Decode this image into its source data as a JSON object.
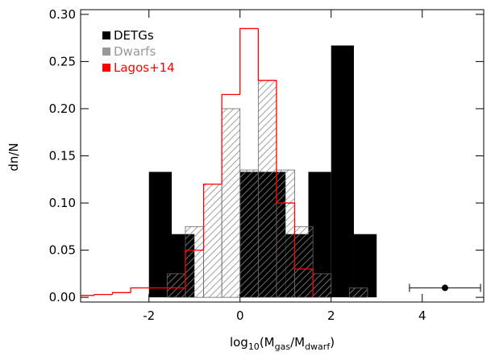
{
  "chart_data": {
    "type": "histogram",
    "xlabel_parts": [
      "log",
      "10",
      "(M",
      "gas",
      "/M",
      "dwarf",
      ")"
    ],
    "ylabel": "dn/N",
    "xlim": [
      -3.5,
      5.35
    ],
    "ylim": [
      -0.005,
      0.305
    ],
    "xticks": [
      -2,
      0,
      2,
      4
    ],
    "yticks": [
      {
        "value": 0,
        "label": "0.00"
      },
      {
        "value": 0.05,
        "label": "0.05"
      },
      {
        "value": 0.1,
        "label": "0.10"
      },
      {
        "value": 0.15,
        "label": "0.15"
      },
      {
        "value": 0.2,
        "label": "0.20"
      },
      {
        "value": 0.25,
        "label": "0.25"
      },
      {
        "value": 0.3,
        "label": "0.30"
      }
    ],
    "legend": "top-left",
    "series": [
      {
        "name": "DETGs",
        "color": "#000000",
        "style": "filled",
        "bins": [
          -2,
          -1.5,
          -1,
          -0.5,
          0,
          0.5,
          1,
          1.5,
          2,
          2.5,
          3
        ],
        "counts": [
          0.133,
          0.067,
          0,
          0,
          0.133,
          0.133,
          0.067,
          0.133,
          0.267,
          0.067
        ]
      },
      {
        "name": "Dwarfs",
        "color": "#999999",
        "style": "hatched",
        "bins": [
          -1.6,
          -1.2,
          -0.8,
          -0.4,
          0,
          0.4,
          0.8,
          1.2,
          1.6,
          2.0,
          2.4,
          2.8
        ],
        "counts": [
          0.025,
          0.075,
          0.12,
          0.2,
          0.135,
          0.23,
          0.135,
          0.075,
          0.025,
          0,
          0.01
        ]
      },
      {
        "name": "Lagos+14",
        "color": "#ff0000",
        "style": "step",
        "bins": [
          -3.6,
          -3.2,
          -2.8,
          -2.4,
          -2.0,
          -1.6,
          -1.2,
          -0.8,
          -0.4,
          0,
          0.4,
          0.8,
          1.2,
          1.6
        ],
        "counts": [
          0.002,
          0.003,
          0.005,
          0.01,
          0.01,
          0.01,
          0.05,
          0.12,
          0.215,
          0.285,
          0.23,
          0.1,
          0.03
        ]
      }
    ],
    "point": {
      "x": 4.5,
      "y": 0.01,
      "xerr": 0.78
    }
  }
}
